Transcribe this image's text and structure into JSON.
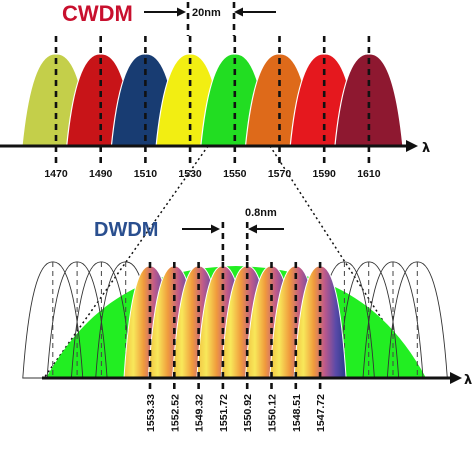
{
  "cwdm": {
    "title": "CWDM",
    "title_color": "#c8102e",
    "spacing_label": "20nm",
    "axis_symbol": "λ",
    "channels": [
      {
        "label": "1470",
        "color": "#c4cf4a"
      },
      {
        "label": "1490",
        "color": "#c81418"
      },
      {
        "label": "1510",
        "color": "#183c72"
      },
      {
        "label": "1530",
        "color": "#f2ee12"
      },
      {
        "label": "1550",
        "color": "#22dd22"
      },
      {
        "label": "1570",
        "color": "#de6a1a"
      },
      {
        "label": "1590",
        "color": "#e5181e"
      },
      {
        "label": "1610",
        "color": "#8e1830"
      }
    ]
  },
  "dwdm": {
    "title": "DWDM",
    "title_color": "#2a4f8f",
    "spacing_label": "0.8nm",
    "axis_symbol": "λ",
    "envelope_color": "#22ee22",
    "channels": [
      {
        "label": "1553.33"
      },
      {
        "label": "1552.52"
      },
      {
        "label": "1549.32"
      },
      {
        "label": "1551.72"
      },
      {
        "label": "1550.92"
      },
      {
        "label": "1550.12"
      },
      {
        "label": "1548.51"
      },
      {
        "label": "1547.72"
      }
    ]
  }
}
